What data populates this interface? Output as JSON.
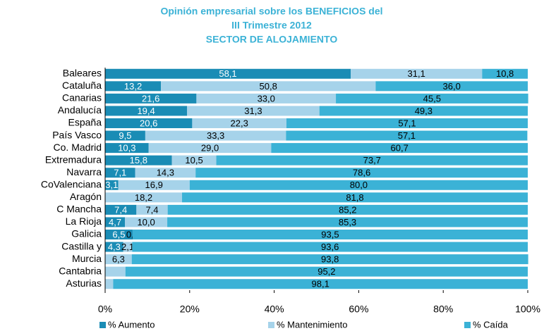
{
  "chart_data": {
    "type": "stacked-bar-horizontal",
    "title": [
      "Opinión empresarial sobre los BENEFICIOS del",
      "III Trimestre 2012",
      "SECTOR DE ALOJAMIENTO"
    ],
    "categories": [
      "Baleares",
      "Cataluña",
      "Canarias",
      "Andalucía",
      "España",
      "País Vasco",
      "Co. Madrid",
      "Extremadura",
      "Navarra",
      "CoValenciana",
      "Aragón",
      "C Mancha",
      "La Rioja",
      "Galicia",
      "Castilla y",
      "Murcia",
      "Cantabria",
      "Asturias"
    ],
    "series": [
      {
        "name": "% Aumento",
        "color": "#1a8cb5",
        "label_color": "#ffffff",
        "values": [
          58.1,
          13.2,
          21.6,
          19.4,
          20.6,
          9.5,
          10.3,
          15.8,
          7.1,
          3.1,
          0,
          7.4,
          4.7,
          6.5,
          4.3,
          0,
          0,
          0
        ],
        "value_labels": [
          "58,1",
          "13,2",
          "21,6",
          "19,4",
          "20,6",
          "9,5",
          "10,3",
          "15,8",
          "7,1",
          "3,1",
          "0",
          "7,4",
          "4,7",
          "6,5",
          "4,3",
          null,
          "0",
          "0"
        ]
      },
      {
        "name": "% Mantenimiento",
        "color": "#a6d3ea",
        "label_color": "#000000",
        "values": [
          31.1,
          50.8,
          33.0,
          31.3,
          22.3,
          33.3,
          29.0,
          10.5,
          14.3,
          16.9,
          18.2,
          7.4,
          10.0,
          0.0,
          2.1,
          6.3,
          4.8,
          1.9
        ],
        "value_labels": [
          "31,1",
          "50,8",
          "33,0",
          "31,3",
          "22,3",
          "33,3",
          "29,0",
          "10,5",
          "14,3",
          "16,9",
          "18,2",
          "7,4",
          "10,0",
          "0,0",
          "2,1",
          "6,3",
          null,
          null
        ]
      },
      {
        "name": "% Caída",
        "color": "#3bb2d6",
        "label_color": "#000000",
        "values": [
          10.8,
          36.0,
          45.5,
          49.3,
          57.1,
          57.1,
          60.7,
          73.7,
          78.6,
          80.0,
          81.8,
          85.2,
          85.3,
          93.5,
          93.6,
          93.8,
          95.2,
          98.1
        ],
        "value_labels": [
          "10,8",
          "36,0",
          "45,5",
          "49,3",
          "57,1",
          "57,1",
          "60,7",
          "73,7",
          "78,6",
          "80,0",
          "81,8",
          "85,2",
          "85,3",
          "93,5",
          "93,6",
          "93,8",
          "95,2",
          "98,1"
        ]
      }
    ],
    "xlim": [
      0,
      100
    ],
    "xticks": [
      {
        "value": 0,
        "label": "0%"
      },
      {
        "value": 20,
        "label": "20%"
      },
      {
        "value": 40,
        "label": "40%"
      },
      {
        "value": 60,
        "label": "60%"
      },
      {
        "value": 80,
        "label": "80%"
      },
      {
        "value": 100,
        "label": "100%"
      }
    ]
  }
}
